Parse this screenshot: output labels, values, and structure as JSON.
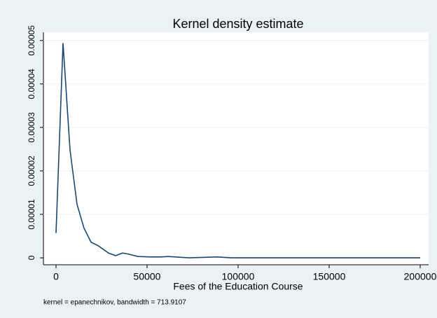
{
  "chart_data": {
    "type": "line",
    "title": "Kernel density estimate",
    "xlabel": "Fees of the Education Course",
    "note": "kernel = epanechnikov, bandwidth = 713.9107",
    "x": [
      0,
      3846,
      7692,
      11538,
      15385,
      19231,
      23077,
      28846,
      32692,
      36538,
      40385,
      45000,
      51923,
      57692,
      61538,
      65385,
      73077,
      88462,
      96154,
      200000
    ],
    "series": [
      {
        "name": "density",
        "color": "#1a476f",
        "values": [
          5.7e-06,
          4.94e-05,
          2.48e-05,
          1.23e-05,
          6.8e-06,
          3.6e-06,
          2.8e-06,
          1.1e-06,
          5e-07,
          1.1e-06,
          8e-07,
          3e-07,
          2e-07,
          2e-07,
          3e-07,
          2e-07,
          0,
          2e-07,
          0,
          0
        ]
      }
    ],
    "xlim": [
      -6923,
      204615
    ],
    "xticks": [
      0,
      50000,
      100000,
      150000,
      200000
    ],
    "ylim": [
      -1.6e-06,
      5.19e-05
    ],
    "yticks": [
      0,
      1e-05,
      2e-05,
      3e-05,
      4e-05,
      5e-05
    ],
    "grid": true
  }
}
